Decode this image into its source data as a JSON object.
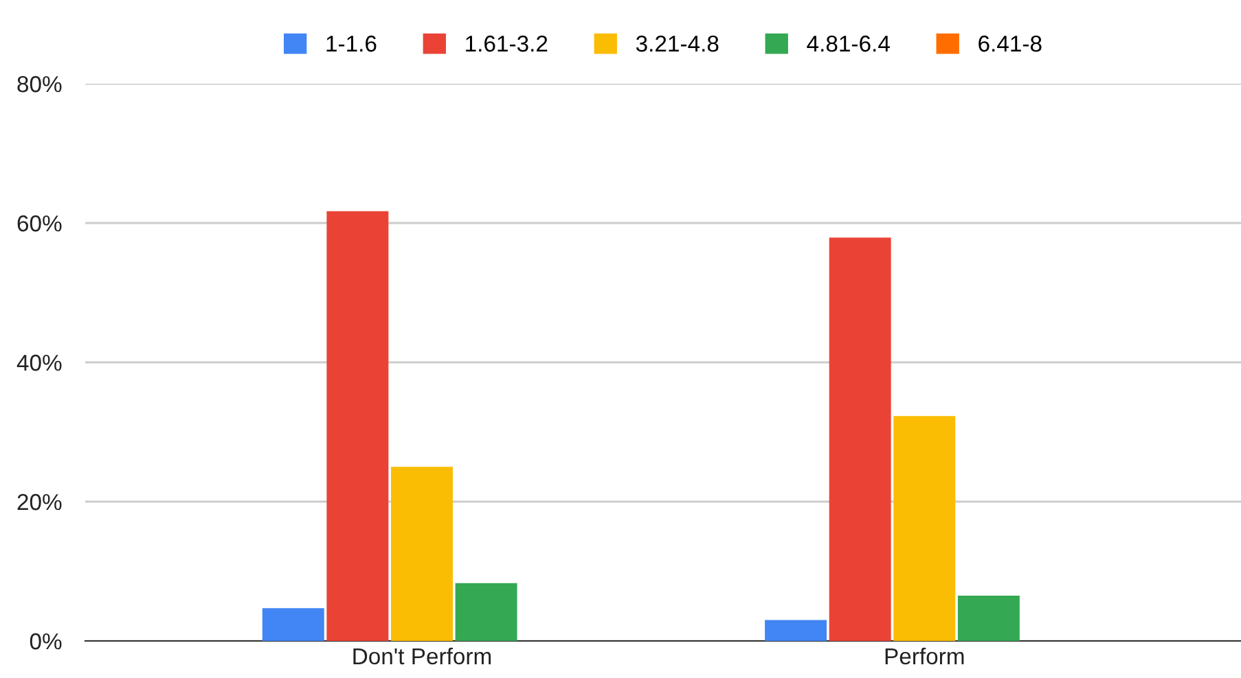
{
  "chart_data": {
    "type": "bar",
    "categories": [
      "Don't Perform",
      "Perform"
    ],
    "series": [
      {
        "name": "1-1.6",
        "color": "#4285f4",
        "values": [
          4.7,
          3.0
        ]
      },
      {
        "name": "1.61-3.2",
        "color": "#ea4335",
        "values": [
          61.7,
          57.9
        ]
      },
      {
        "name": "3.21-4.8",
        "color": "#fbbc04",
        "values": [
          25.0,
          32.3
        ]
      },
      {
        "name": "4.81-6.4",
        "color": "#34a853",
        "values": [
          8.3,
          6.5
        ]
      },
      {
        "name": "6.41-8",
        "color": "#ff6d01",
        "values": [
          0,
          0
        ]
      }
    ],
    "ylim": [
      0,
      80
    ],
    "yticks": [
      {
        "value": 0,
        "label": "0%"
      },
      {
        "value": 20,
        "label": "20%"
      },
      {
        "value": 40,
        "label": "40%"
      },
      {
        "value": 60,
        "label": "60%"
      },
      {
        "value": 80,
        "label": "80%"
      }
    ],
    "grid": "y",
    "legend": "top"
  }
}
